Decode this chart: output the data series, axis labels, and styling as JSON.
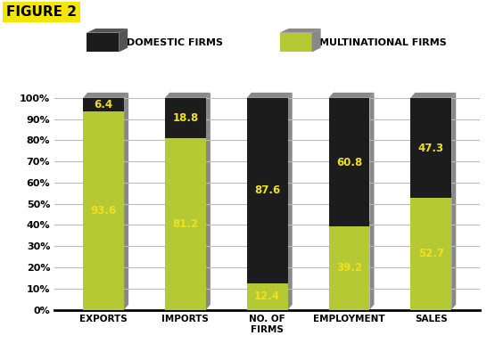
{
  "categories": [
    "EXPORTS",
    "IMPORTS",
    "NO. OF\nFIRMS",
    "EMPLOYMENT",
    "SALES"
  ],
  "multinational": [
    93.6,
    81.2,
    12.4,
    39.2,
    52.7
  ],
  "domestic": [
    6.4,
    18.8,
    87.6,
    60.8,
    47.3
  ],
  "color_multi": "#b5c934",
  "color_domestic": "#1c1c1c",
  "color_shadow": "#888888",
  "color_label_text": "#f0e020",
  "background_color": "#ffffff",
  "grid_color": "#bbbbbb",
  "title_text": "FIGURE 2",
  "title_bg": "#f5e500",
  "legend_domestic": "DOMESTIC FIRMS",
  "legend_multi": "MULTINATIONAL FIRMS",
  "ylabel_ticks": [
    "0%",
    "10%",
    "20%",
    "30%",
    "40%",
    "50%",
    "60%",
    "70%",
    "80%",
    "90%",
    "100%"
  ],
  "ytick_vals": [
    0,
    10,
    20,
    30,
    40,
    50,
    60,
    70,
    80,
    90,
    100
  ],
  "bar_width": 0.5,
  "figsize": [
    5.55,
    3.95
  ],
  "dpi": 100
}
